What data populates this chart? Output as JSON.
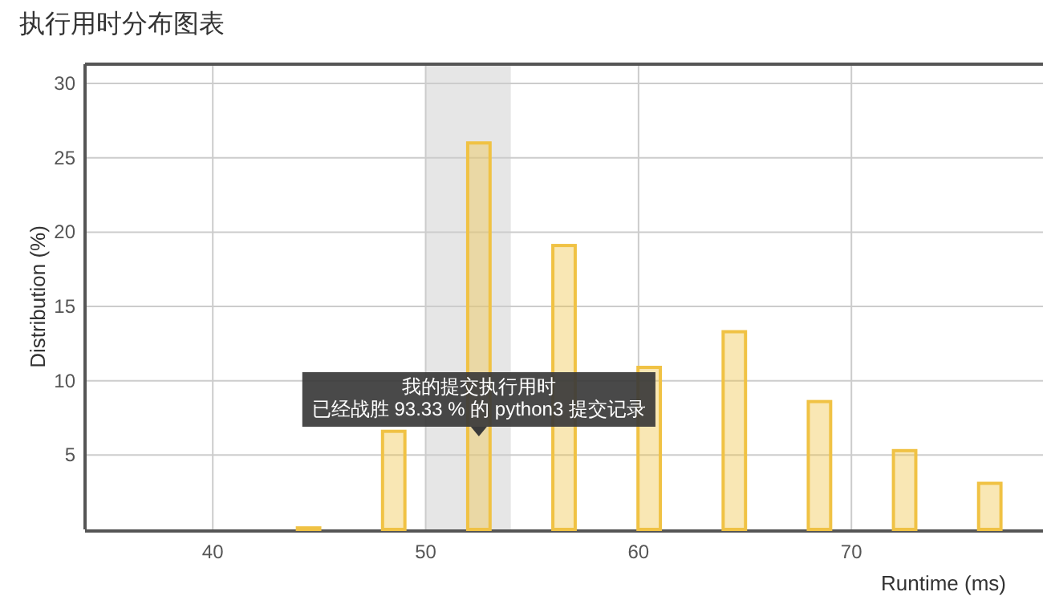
{
  "chart_data": {
    "type": "bar",
    "title": "执行用时分布图表",
    "xlabel": "Runtime (ms)",
    "ylabel": "Distribution (%)",
    "x": [
      44.5,
      48.5,
      52.5,
      56.5,
      60.5,
      64.5,
      68.5,
      72.5,
      76.5
    ],
    "series": [
      {
        "color": "#f0c244",
        "values": [
          0.1,
          6.6,
          26.0,
          19.1,
          10.9,
          13.3,
          8.6,
          5.3,
          3.1
        ]
      }
    ],
    "xlim": [
      34,
      79
    ],
    "xticks": [
      40,
      50,
      60,
      70
    ],
    "ylim": [
      0,
      31.3
    ],
    "yticks": [
      5,
      10,
      15,
      20,
      25,
      30
    ],
    "bands": [
      {
        "axis": "x",
        "from": 50,
        "to": 54,
        "color": "#e6e6e6"
      }
    ],
    "annotations": [
      "我的提交执行用时",
      "已经战胜 93.33 % 的 python3 提交记录"
    ],
    "grid": true
  }
}
